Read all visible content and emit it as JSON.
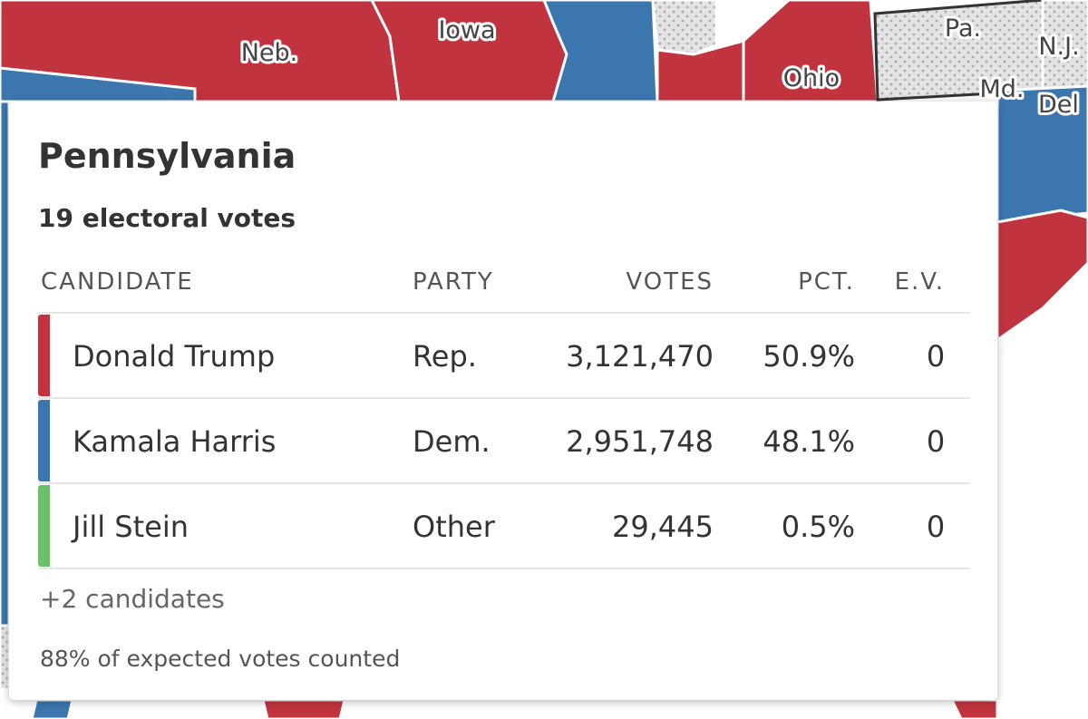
{
  "map": {
    "labels": [
      "Neb.",
      "Iowa",
      "Ohio",
      "Pa.",
      "N.J.",
      "Md.",
      "Del"
    ]
  },
  "tooltip": {
    "title": "Pennsylvania",
    "subtitle": "19 electoral votes",
    "table": {
      "header": [
        "CANDIDATE",
        "PARTY",
        "VOTES",
        "PCT.",
        "E.V."
      ],
      "rows": [
        {
          "color": "#c1343f",
          "cells": [
            "Donald Trump",
            "Rep.",
            "3,121,470",
            "50.9%",
            "0"
          ]
        },
        {
          "color": "#3b77ae",
          "cells": [
            "Kamala Harris",
            "Dem.",
            "2,951,748",
            "48.1%",
            "0"
          ]
        },
        {
          "color": "#6cc06a",
          "cells": [
            "Jill Stein",
            "Other",
            "29,445",
            "0.5%",
            "0"
          ]
        }
      ]
    },
    "more": "+2 candidates",
    "footer": "88% of expected votes counted"
  }
}
